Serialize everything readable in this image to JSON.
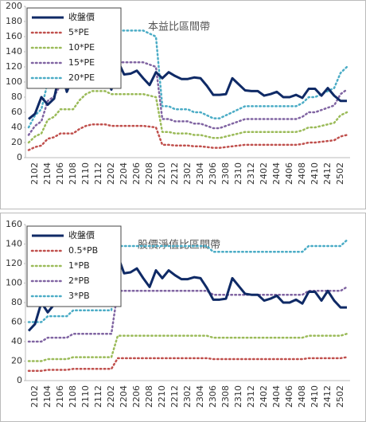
{
  "chart_data": [
    {
      "type": "line",
      "title": "本益比區間帶",
      "categories": [
        null,
        "2102",
        null,
        "2104",
        null,
        "2106",
        null,
        "2108",
        null,
        "2110",
        null,
        "2112",
        null,
        "2202",
        null,
        "2204",
        null,
        "2206",
        null,
        "2208",
        null,
        "2210",
        null,
        "2212",
        null,
        "2302",
        null,
        "2304",
        null,
        "2306",
        null,
        "2308",
        null,
        "2310",
        null,
        "2312",
        null,
        "2402",
        null,
        "2404",
        null,
        "2406",
        null,
        "2408",
        null,
        "2410",
        null,
        "2412",
        null,
        "2502",
        null
      ],
      "ylim": [
        0,
        200
      ],
      "yticks": [
        0,
        20,
        40,
        60,
        80,
        100,
        120,
        140,
        160,
        180,
        200
      ],
      "grid": false,
      "legend": "upper left",
      "series": [
        {
          "name": "收盤價",
          "color": "#0f2a66",
          "style": "solid",
          "values": [
            51,
            58,
            80,
            70,
            78,
            118,
            87,
            107,
            100,
            113,
            100,
            100,
            108,
            90,
            128,
            110,
            111,
            115,
            105,
            96,
            113,
            105,
            113,
            108,
            104,
            104,
            106,
            105,
            95,
            83,
            83,
            84,
            105,
            97,
            89,
            88,
            88,
            82,
            84,
            87,
            80,
            80,
            83,
            79,
            91,
            91,
            82,
            92,
            82,
            75,
            75
          ]
        },
        {
          "name": "5*PE",
          "color": "#c0504d",
          "style": "dotted",
          "values": [
            10,
            14,
            16,
            25,
            27,
            32,
            32,
            32,
            38,
            42,
            44,
            44,
            44,
            42,
            42,
            42,
            42,
            42,
            42,
            41,
            40,
            17,
            17,
            16,
            16,
            16,
            15,
            15,
            14,
            13,
            13,
            14,
            15,
            16,
            17,
            17,
            17,
            17,
            17,
            17,
            17,
            17,
            17,
            18,
            20,
            20,
            21,
            22,
            23,
            28,
            30
          ]
        },
        {
          "name": "10*PE",
          "color": "#9bbb59",
          "style": "dotted",
          "values": [
            20,
            28,
            32,
            50,
            54,
            64,
            64,
            64,
            76,
            84,
            88,
            88,
            88,
            84,
            84,
            84,
            84,
            84,
            84,
            82,
            80,
            34,
            34,
            32,
            32,
            32,
            30,
            30,
            28,
            26,
            26,
            28,
            30,
            32,
            34,
            34,
            34,
            34,
            34,
            34,
            34,
            34,
            34,
            36,
            40,
            40,
            42,
            44,
            46,
            56,
            60
          ]
        },
        {
          "name": "15*PE",
          "color": "#8064a2",
          "style": "dotted",
          "values": [
            30,
            42,
            48,
            75,
            81,
            96,
            96,
            96,
            114,
            126,
            132,
            132,
            132,
            126,
            126,
            126,
            126,
            126,
            126,
            123,
            120,
            51,
            51,
            48,
            48,
            48,
            45,
            45,
            42,
            39,
            39,
            42,
            45,
            48,
            51,
            51,
            51,
            51,
            51,
            51,
            51,
            51,
            51,
            54,
            60,
            60,
            63,
            66,
            69,
            84,
            90
          ]
        },
        {
          "name": "20*PE",
          "color": "#4bacc6",
          "style": "dotted",
          "values": [
            40,
            56,
            64,
            100,
            108,
            128,
            128,
            128,
            152,
            168,
            176,
            176,
            176,
            168,
            168,
            168,
            168,
            168,
            168,
            164,
            160,
            68,
            68,
            64,
            64,
            64,
            60,
            60,
            56,
            52,
            52,
            56,
            60,
            64,
            68,
            68,
            68,
            68,
            68,
            68,
            68,
            68,
            68,
            72,
            80,
            80,
            84,
            88,
            92,
            112,
            120
          ]
        }
      ]
    },
    {
      "type": "line",
      "title": "股價淨值比區間帶",
      "categories": [
        null,
        "2102",
        null,
        "2104",
        null,
        "2106",
        null,
        "2108",
        null,
        "2110",
        null,
        "2112",
        null,
        "2202",
        null,
        "2204",
        null,
        "2206",
        null,
        "2208",
        null,
        "2210",
        null,
        "2212",
        null,
        "2302",
        null,
        "2304",
        null,
        "2306",
        null,
        "2308",
        null,
        "2310",
        null,
        "2312",
        null,
        "2402",
        null,
        "2404",
        null,
        "2406",
        null,
        "2408",
        null,
        "2410",
        null,
        "2412",
        null,
        "2502",
        null
      ],
      "ylim": [
        0,
        160
      ],
      "yticks": [
        0,
        20,
        40,
        60,
        80,
        100,
        120,
        140,
        160
      ],
      "grid": false,
      "legend": "upper left",
      "series": [
        {
          "name": "收盤價",
          "color": "#0f2a66",
          "style": "solid",
          "values": [
            51,
            58,
            80,
            70,
            78,
            118,
            87,
            107,
            100,
            113,
            100,
            100,
            108,
            90,
            128,
            110,
            111,
            115,
            105,
            96,
            113,
            105,
            113,
            108,
            104,
            104,
            106,
            105,
            95,
            83,
            83,
            84,
            105,
            97,
            89,
            88,
            88,
            82,
            84,
            87,
            80,
            80,
            83,
            79,
            91,
            91,
            82,
            92,
            82,
            75,
            75
          ]
        },
        {
          "name": "0.5*PB",
          "color": "#c0504d",
          "style": "dotted",
          "values": [
            10,
            10,
            10,
            11,
            11,
            11,
            11,
            12,
            12,
            12,
            12,
            12,
            12,
            12,
            23,
            23,
            23,
            23,
            23,
            23,
            23,
            23,
            23,
            23,
            23,
            23,
            23,
            23,
            23,
            22,
            22,
            22,
            22,
            22,
            22,
            22,
            22,
            22,
            22,
            22,
            22,
            22,
            22,
            22,
            23,
            23,
            23,
            23,
            23,
            23,
            24
          ]
        },
        {
          "name": "1*PB",
          "color": "#9bbb59",
          "style": "dotted",
          "values": [
            20,
            20,
            20,
            22,
            22,
            22,
            22,
            24,
            24,
            24,
            24,
            24,
            24,
            24,
            46,
            46,
            46,
            46,
            46,
            46,
            46,
            46,
            46,
            46,
            46,
            46,
            46,
            46,
            46,
            44,
            44,
            44,
            44,
            44,
            44,
            44,
            44,
            44,
            44,
            44,
            44,
            44,
            44,
            44,
            46,
            46,
            46,
            46,
            46,
            46,
            48
          ]
        },
        {
          "name": "2*PB",
          "color": "#8064a2",
          "style": "dotted",
          "values": [
            40,
            40,
            40,
            44,
            44,
            44,
            44,
            48,
            48,
            48,
            48,
            48,
            48,
            48,
            92,
            92,
            92,
            92,
            92,
            92,
            92,
            92,
            92,
            92,
            92,
            92,
            92,
            92,
            92,
            88,
            88,
            88,
            88,
            88,
            88,
            88,
            88,
            88,
            88,
            88,
            88,
            88,
            88,
            88,
            92,
            92,
            92,
            92,
            92,
            92,
            96
          ]
        },
        {
          "name": "3*PB",
          "color": "#4bacc6",
          "style": "dotted",
          "values": [
            60,
            60,
            60,
            66,
            66,
            66,
            66,
            72,
            72,
            72,
            72,
            72,
            72,
            72,
            138,
            138,
            138,
            138,
            138,
            138,
            138,
            138,
            138,
            138,
            138,
            138,
            138,
            138,
            138,
            132,
            132,
            132,
            132,
            132,
            132,
            132,
            132,
            132,
            132,
            132,
            132,
            132,
            132,
            132,
            138,
            138,
            138,
            138,
            138,
            138,
            144
          ]
        }
      ]
    }
  ]
}
